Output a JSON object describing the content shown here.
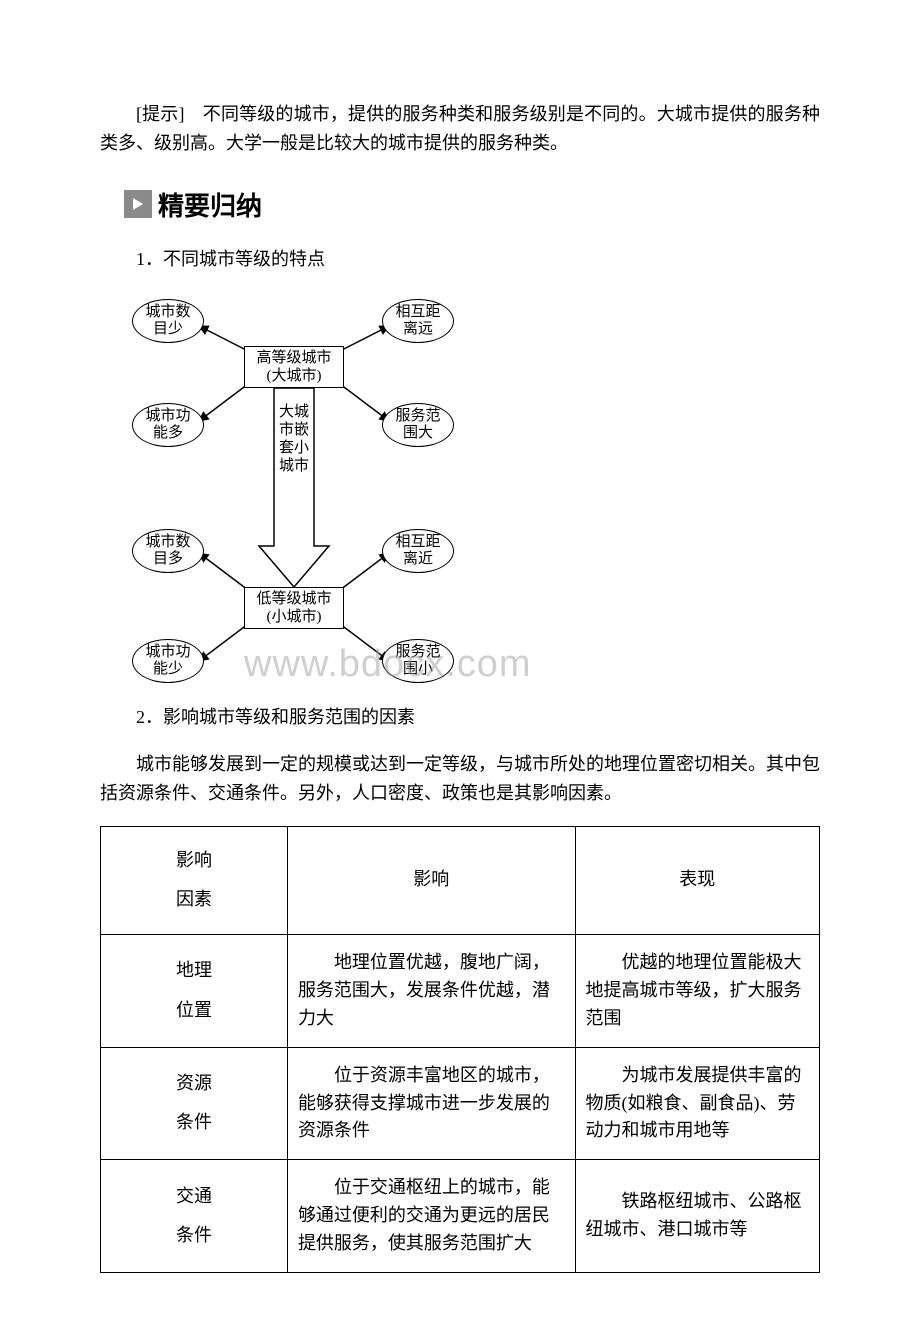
{
  "tip": "[提示]　不同等级的城市，提供的服务种类和服务级别是不同的。大城市提供的服务种类多、级别高。大学一般是比较大的城市提供的服务种类。",
  "section_heading": "精要归纳",
  "h1": "1．不同城市等级的特点",
  "diagram": {
    "nodes": {
      "tl": "城市数\n目少",
      "tr": "相互距\n离远",
      "ml": "城市功\n能多",
      "mr": "服务范\n围大",
      "bl": "城市数\n目多",
      "br": "相互距\n离近",
      "fl": "城市功\n能少",
      "fr": "服务范\n围小",
      "top_rect": "高等级城市\n(大城市)",
      "mid_rect": "大城\n市嵌\n套小\n城市",
      "bot_rect": "低等级城市\n(小城市)"
    },
    "colors": {
      "stroke": "#000000",
      "bg": "#ffffff"
    }
  },
  "watermark": "www.bdocx.com",
  "h2": "2．影响城市等级和服务范围的因素",
  "p2": "城市能够发展到一定的规模或达到一定等级，与城市所处的地理位置密切相关。其中包括资源条件、交通条件。另外，人口密度、政策也是其影响因素。",
  "table": {
    "header": {
      "a": "影响\n因素",
      "b": "影响",
      "c": "表现"
    },
    "rows": [
      {
        "a": "地理\n位置",
        "b": "地理位置优越，腹地广阔，服务范围大，发展条件优越，潜力大",
        "c": "优越的地理位置能极大地提高城市等级，扩大服务范围"
      },
      {
        "a": "资源\n条件",
        "b": "位于资源丰富地区的城市，能够获得支撑城市进一步发展的资源条件",
        "c": "为城市发展提供丰富的物质(如粮食、副食品)、劳动力和城市用地等"
      },
      {
        "a": "交通\n条件",
        "b": "位于交通枢纽上的城市，能够通过便利的交通为更远的居民提供服务，使其服务范围扩大",
        "c": "铁路枢纽城市、公路枢纽城市、港口城市等"
      }
    ]
  }
}
